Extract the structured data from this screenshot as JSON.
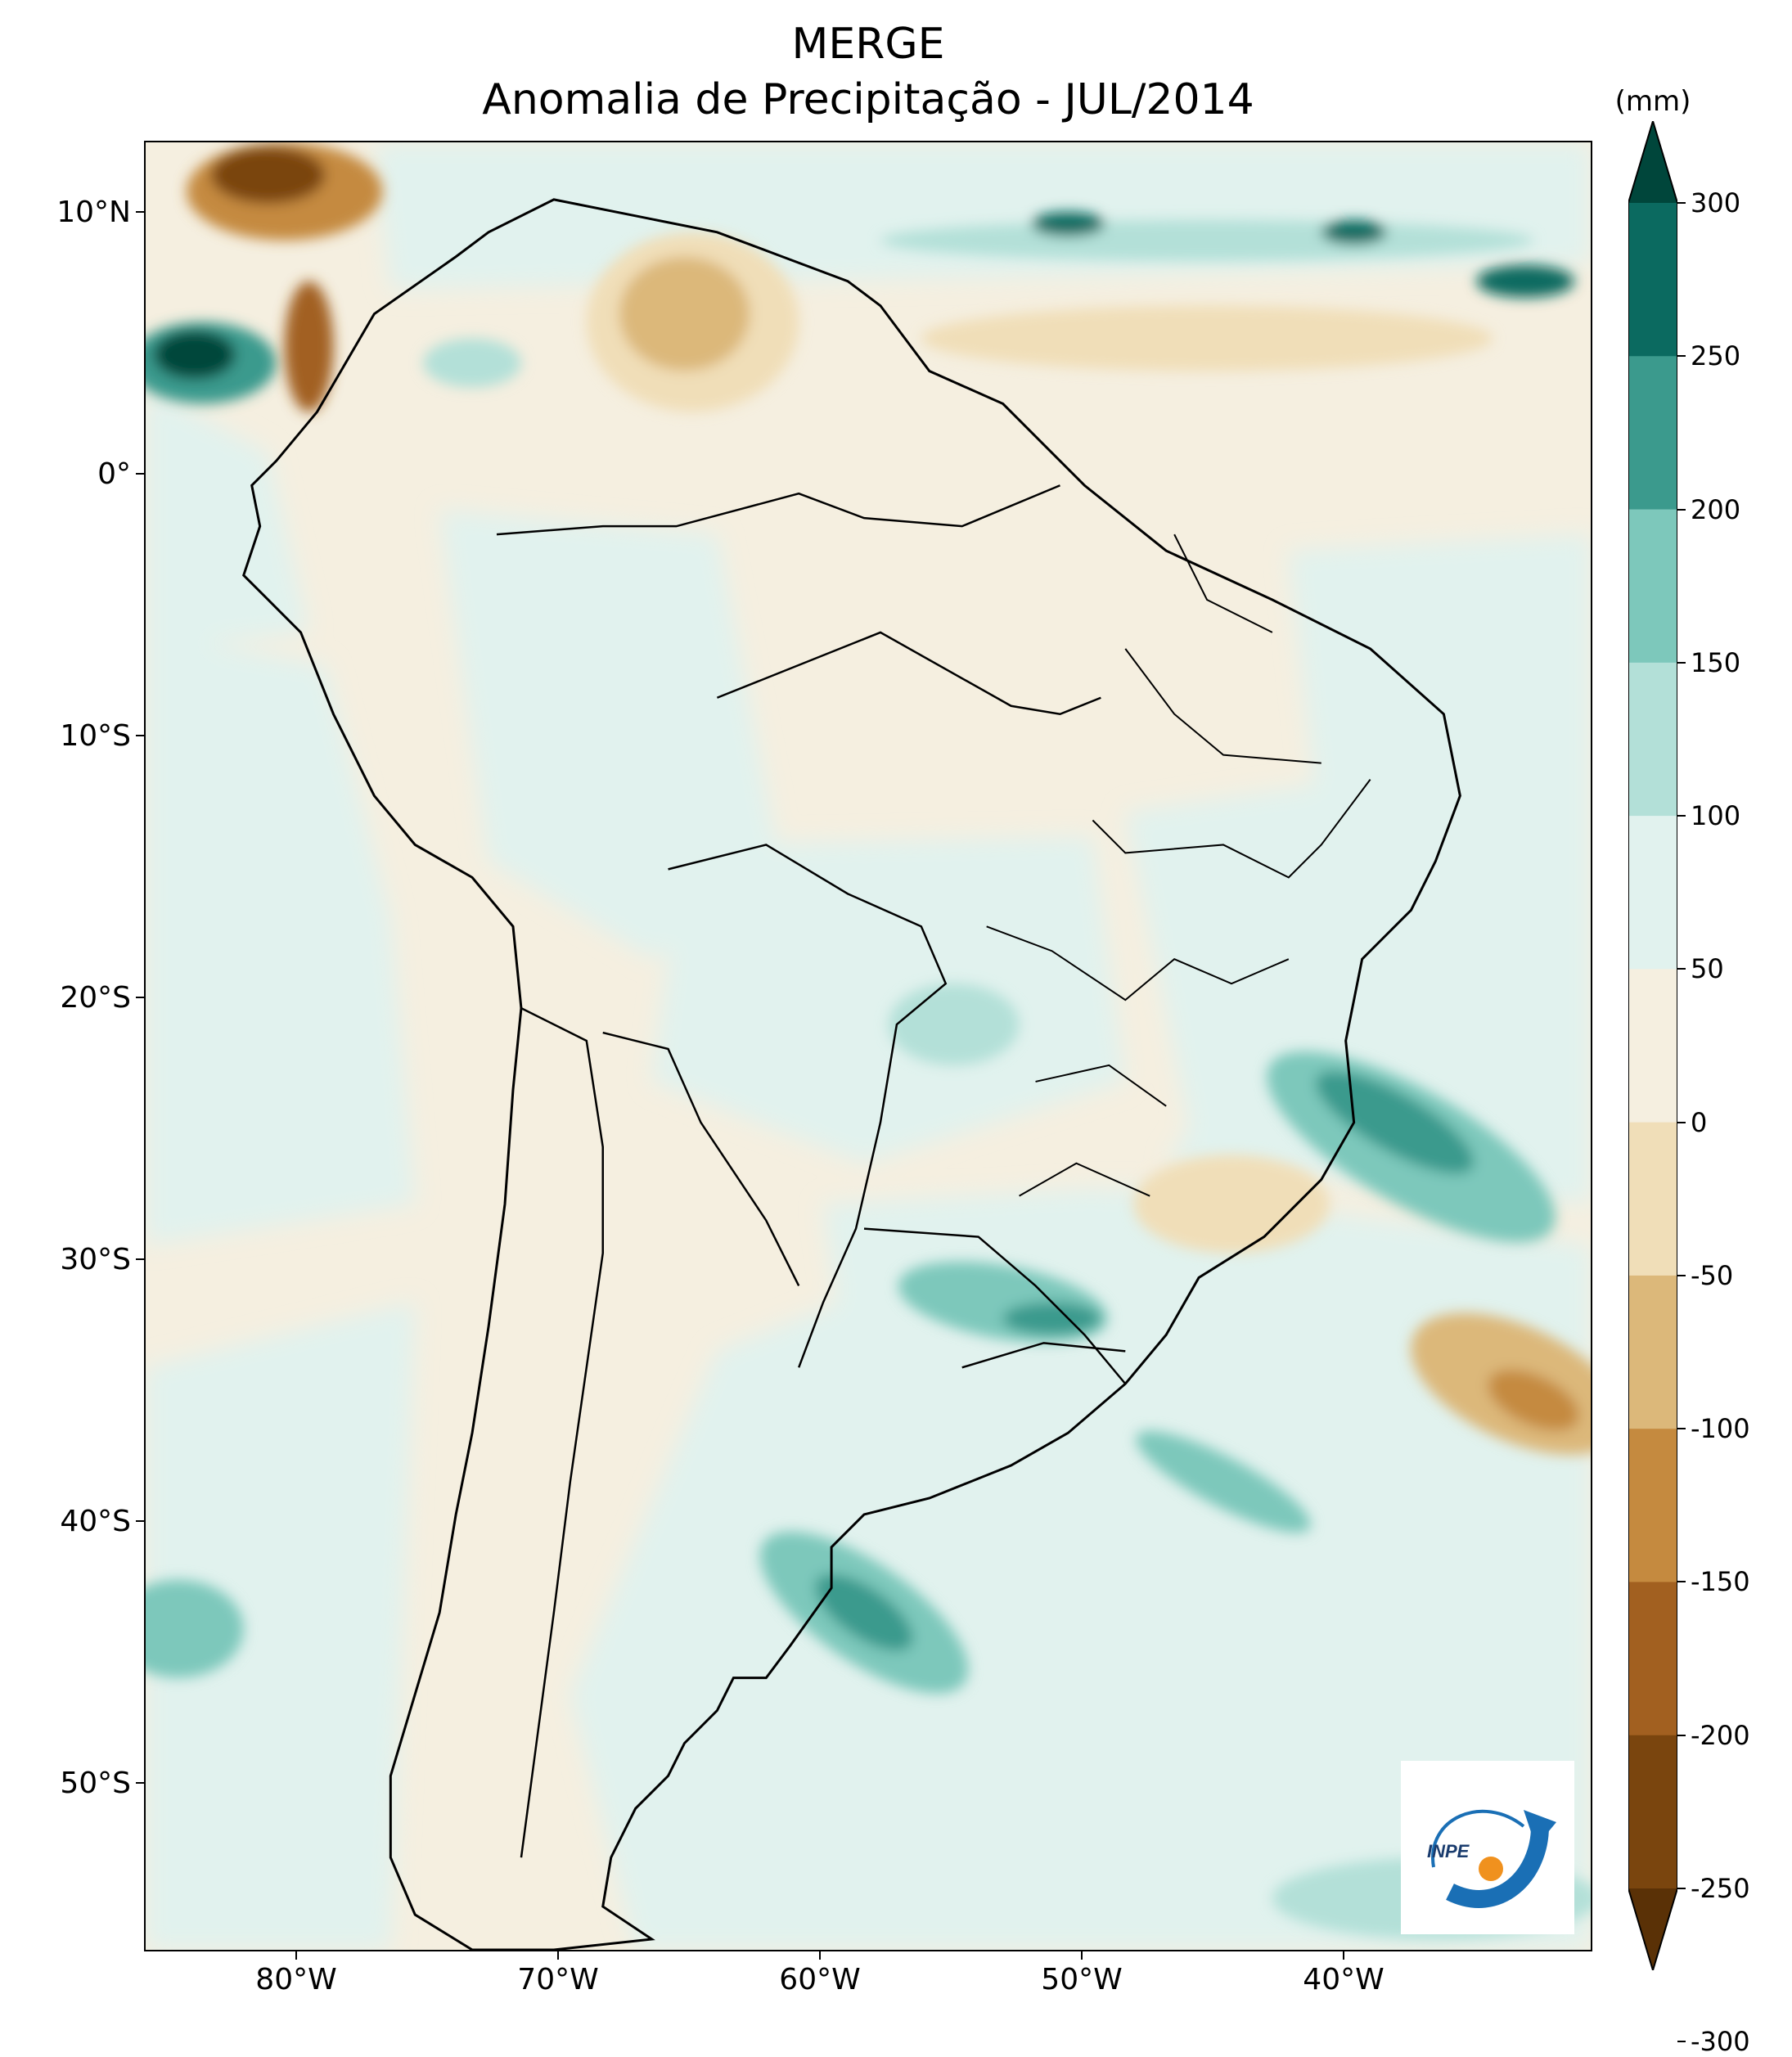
{
  "title": "MERGE",
  "subtitle": "Anomalia de Precipitação - JUL/2014",
  "unit": "(mm)",
  "lat_labels": [
    "10°N",
    "0°",
    "10°S",
    "20°S",
    "30°S",
    "40°S",
    "50°S"
  ],
  "lon_labels": [
    "80°W",
    "70°W",
    "60°W",
    "50°W",
    "40°W"
  ],
  "colorbar": {
    "ticks": [
      "300",
      "250",
      "200",
      "150",
      "100",
      "50",
      "0",
      "-50",
      "-100",
      "-150",
      "-200",
      "-250",
      "-300"
    ],
    "colors": [
      "#00463b",
      "#0b6a60",
      "#3b9a8d",
      "#7dc8bb",
      "#b3e0d8",
      "#e1f2ee",
      "#f5efe0",
      "#f0deb8",
      "#dcb87a",
      "#c58a3f",
      "#a26020",
      "#7a450e",
      "#5a3106"
    ]
  },
  "logo_text": "INPE"
}
